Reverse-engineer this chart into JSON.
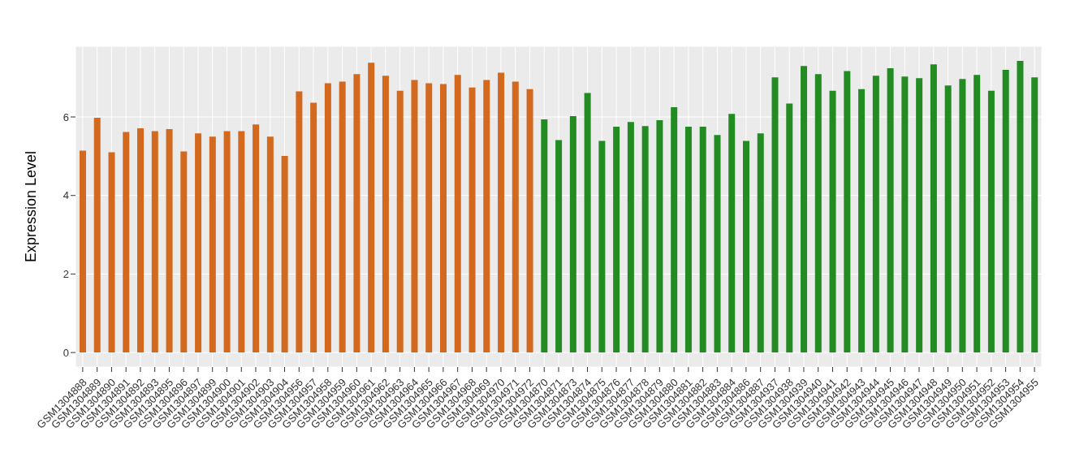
{
  "chart_data": {
    "type": "bar",
    "ylabel": "Expression Level",
    "categories": [
      "GSM1304888",
      "GSM1304889",
      "GSM1304890",
      "GSM1304891",
      "GSM1304892",
      "GSM1304893",
      "GSM1304895",
      "GSM1304896",
      "GSM1304897",
      "GSM1304899",
      "GSM1304900",
      "GSM1304901",
      "GSM1304902",
      "GSM1304903",
      "GSM1304904",
      "GSM1304956",
      "GSM1304957",
      "GSM1304958",
      "GSM1304959",
      "GSM1304960",
      "GSM1304961",
      "GSM1304962",
      "GSM1304963",
      "GSM1304964",
      "GSM1304965",
      "GSM1304966",
      "GSM1304967",
      "GSM1304968",
      "GSM1304969",
      "GSM1304970",
      "GSM1304971",
      "GSM1304972",
      "GSM1304870",
      "GSM1304871",
      "GSM1304873",
      "GSM1304874",
      "GSM1304875",
      "GSM1304876",
      "GSM1304877",
      "GSM1304878",
      "GSM1304879",
      "GSM1304880",
      "GSM1304881",
      "GSM1304882",
      "GSM1304883",
      "GSM1304884",
      "GSM1304886",
      "GSM1304887",
      "GSM1304937",
      "GSM1304938",
      "GSM1304939",
      "GSM1304940",
      "GSM1304941",
      "GSM1304942",
      "GSM1304943",
      "GSM1304944",
      "GSM1304945",
      "GSM1304946",
      "GSM1304947",
      "GSM1304948",
      "GSM1304949",
      "GSM1304950",
      "GSM1304951",
      "GSM1304952",
      "GSM1304953",
      "GSM1304954",
      "GSM1304955"
    ],
    "values": [
      5.14,
      5.98,
      5.1,
      5.62,
      5.71,
      5.64,
      5.69,
      5.12,
      5.58,
      5.5,
      5.64,
      5.64,
      5.81,
      5.5,
      5.01,
      6.65,
      6.36,
      6.86,
      6.9,
      7.09,
      7.38,
      7.05,
      6.67,
      6.94,
      6.86,
      6.84,
      7.07,
      6.75,
      6.94,
      7.13,
      6.9,
      6.71,
      5.94,
      5.41,
      6.02,
      6.61,
      5.39,
      5.75,
      5.87,
      5.77,
      5.92,
      6.25,
      5.75,
      5.75,
      5.54,
      6.08,
      5.39,
      5.58,
      7.01,
      6.34,
      7.3,
      7.09,
      6.67,
      7.17,
      6.71,
      7.05,
      7.24,
      7.03,
      6.99,
      7.34,
      6.8,
      6.97,
      7.07,
      6.67,
      7.2,
      7.43,
      7.01
    ],
    "colors": [
      "#d2691e",
      "#d2691e",
      "#d2691e",
      "#d2691e",
      "#d2691e",
      "#d2691e",
      "#d2691e",
      "#d2691e",
      "#d2691e",
      "#d2691e",
      "#d2691e",
      "#d2691e",
      "#d2691e",
      "#d2691e",
      "#d2691e",
      "#d2691e",
      "#d2691e",
      "#d2691e",
      "#d2691e",
      "#d2691e",
      "#d2691e",
      "#d2691e",
      "#d2691e",
      "#d2691e",
      "#d2691e",
      "#d2691e",
      "#d2691e",
      "#d2691e",
      "#d2691e",
      "#d2691e",
      "#d2691e",
      "#d2691e",
      "#228b22",
      "#228b22",
      "#228b22",
      "#228b22",
      "#228b22",
      "#228b22",
      "#228b22",
      "#228b22",
      "#228b22",
      "#228b22",
      "#228b22",
      "#228b22",
      "#228b22",
      "#228b22",
      "#228b22",
      "#228b22",
      "#228b22",
      "#228b22",
      "#228b22",
      "#228b22",
      "#228b22",
      "#228b22",
      "#228b22",
      "#228b22",
      "#228b22",
      "#228b22",
      "#228b22",
      "#228b22",
      "#228b22",
      "#228b22",
      "#228b22",
      "#228b22",
      "#228b22",
      "#228b22",
      "#228b22"
    ],
    "ylim": [
      -0.37,
      7.8
    ],
    "yticks": [
      0,
      2,
      4,
      6
    ],
    "grid": true
  }
}
